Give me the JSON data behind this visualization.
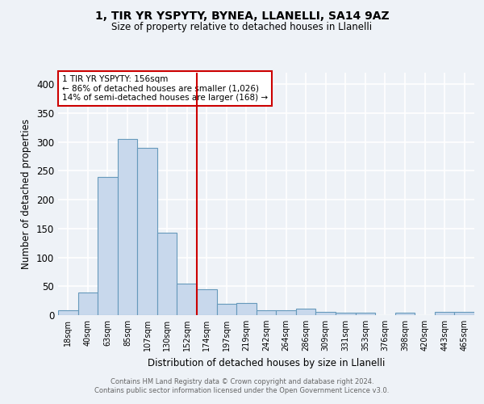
{
  "title1": "1, TIR YR YSPYTY, BYNEA, LLANELLI, SA14 9AZ",
  "title2": "Size of property relative to detached houses in Llanelli",
  "xlabel": "Distribution of detached houses by size in Llanelli",
  "ylabel": "Number of detached properties",
  "bar_labels": [
    "18sqm",
    "40sqm",
    "63sqm",
    "85sqm",
    "107sqm",
    "130sqm",
    "152sqm",
    "174sqm",
    "197sqm",
    "219sqm",
    "242sqm",
    "264sqm",
    "286sqm",
    "309sqm",
    "331sqm",
    "353sqm",
    "376sqm",
    "398sqm",
    "420sqm",
    "443sqm",
    "465sqm"
  ],
  "bar_values": [
    8,
    39,
    240,
    305,
    290,
    143,
    55,
    45,
    20,
    21,
    8,
    8,
    11,
    5,
    4,
    4,
    0,
    4,
    0,
    5,
    5
  ],
  "bar_color": "#c8d8ec",
  "bar_edge_color": "#6699bb",
  "vline_color": "#cc0000",
  "vline_x_idx": 6,
  "annotation_text": "1 TIR YR YSPYTY: 156sqm\n← 86% of detached houses are smaller (1,026)\n14% of semi-detached houses are larger (168) →",
  "annotation_box_color": "#ffffff",
  "annotation_border_color": "#cc0000",
  "ylim": [
    0,
    420
  ],
  "yticks": [
    0,
    50,
    100,
    150,
    200,
    250,
    300,
    350,
    400
  ],
  "footer_text": "Contains HM Land Registry data © Crown copyright and database right 2024.\nContains public sector information licensed under the Open Government Licence v3.0.",
  "background_color": "#eef2f7",
  "plot_bg_color": "#eef2f7",
  "grid_color": "#ffffff"
}
